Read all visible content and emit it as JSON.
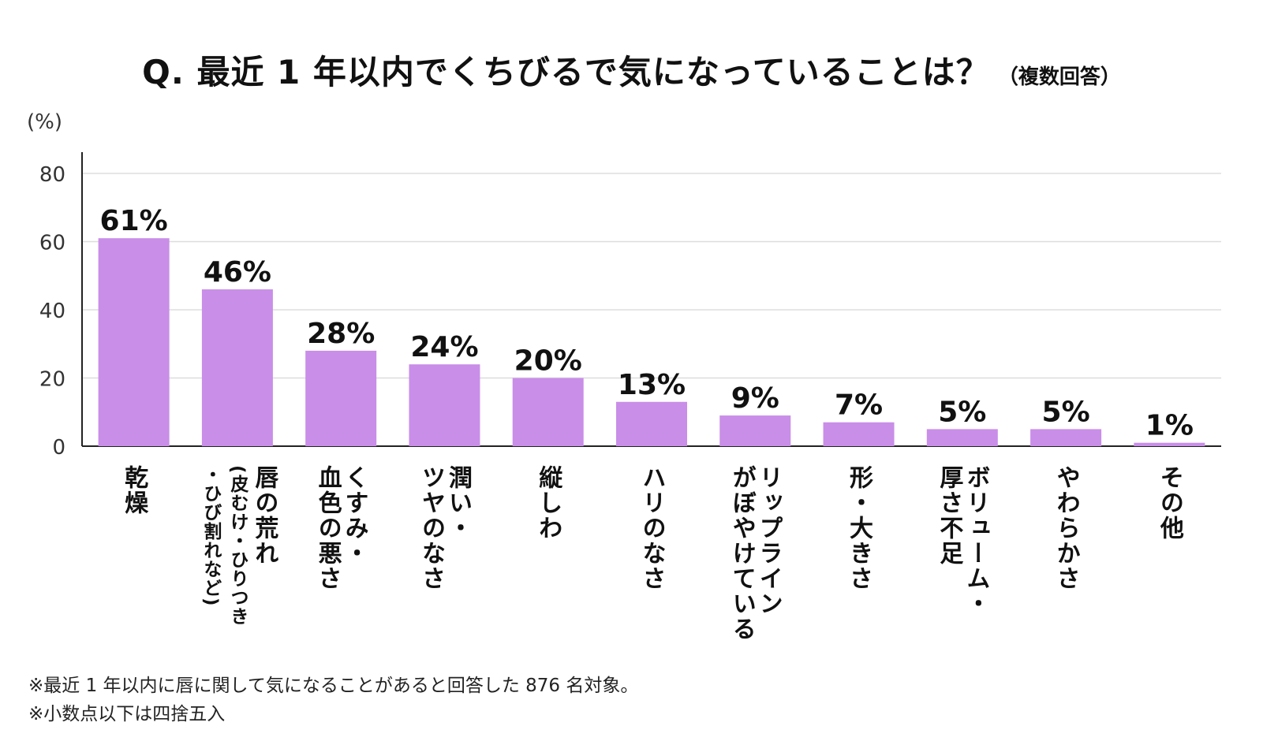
{
  "title": {
    "main": "Q. 最近 1 年以内でくちびるで気になっていることは？",
    "sub": "（複数回答）"
  },
  "chart_data": {
    "type": "bar",
    "unit_label": "(%)",
    "ylim": [
      0,
      80
    ],
    "yticks": [
      0,
      20,
      40,
      60,
      80
    ],
    "grid": true,
    "bar_color": "#c98ee8",
    "categories": [
      [
        "乾燥"
      ],
      [
        "唇の荒れ",
        "(皮むけ・ひりつき",
        "・ひび割れなど)"
      ],
      [
        "くすみ・",
        "血色の悪さ"
      ],
      [
        "潤い・",
        "ツヤのなさ"
      ],
      [
        "縦しわ"
      ],
      [
        "ハリのなさ"
      ],
      [
        "リップライン",
        "がぼやけている"
      ],
      [
        "形・大きさ"
      ],
      [
        "ボリューム・",
        "厚さ不足"
      ],
      [
        "やわらかさ"
      ],
      [
        "その他"
      ]
    ],
    "values": [
      61,
      46,
      28,
      24,
      20,
      13,
      9,
      7,
      5,
      5,
      1
    ],
    "data_labels": [
      "61%",
      "46%",
      "28%",
      "24%",
      "20%",
      "13%",
      "9%",
      "7%",
      "5%",
      "5%",
      "1%"
    ]
  },
  "notes": [
    "※最近 1 年以内に唇に関して気になることがあると回答した 876 名対象。",
    "※小数点以下は四捨五入"
  ]
}
